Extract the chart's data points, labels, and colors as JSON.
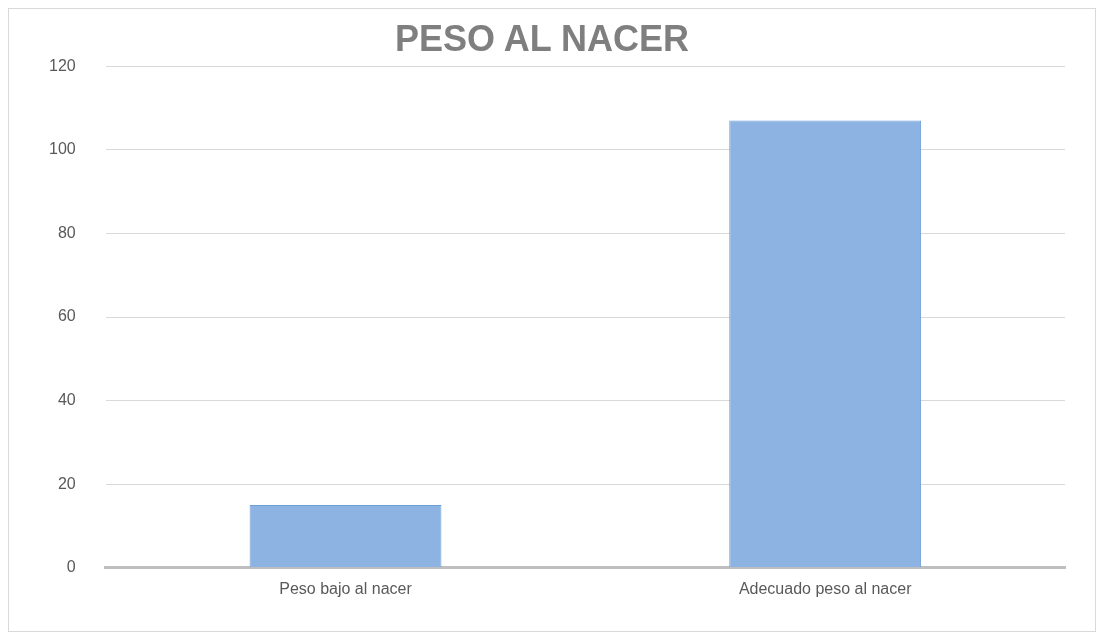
{
  "chart_data": {
    "type": "bar",
    "title": "PESO AL NACER",
    "categories": [
      "Peso bajo al nacer",
      "Adecuado peso al nacer"
    ],
    "values": [
      15,
      107
    ],
    "color": "#8db3e2",
    "ylim": [
      0,
      120
    ],
    "yticks": [
      0,
      20,
      40,
      60,
      80,
      100,
      120
    ],
    "grid": "y"
  }
}
